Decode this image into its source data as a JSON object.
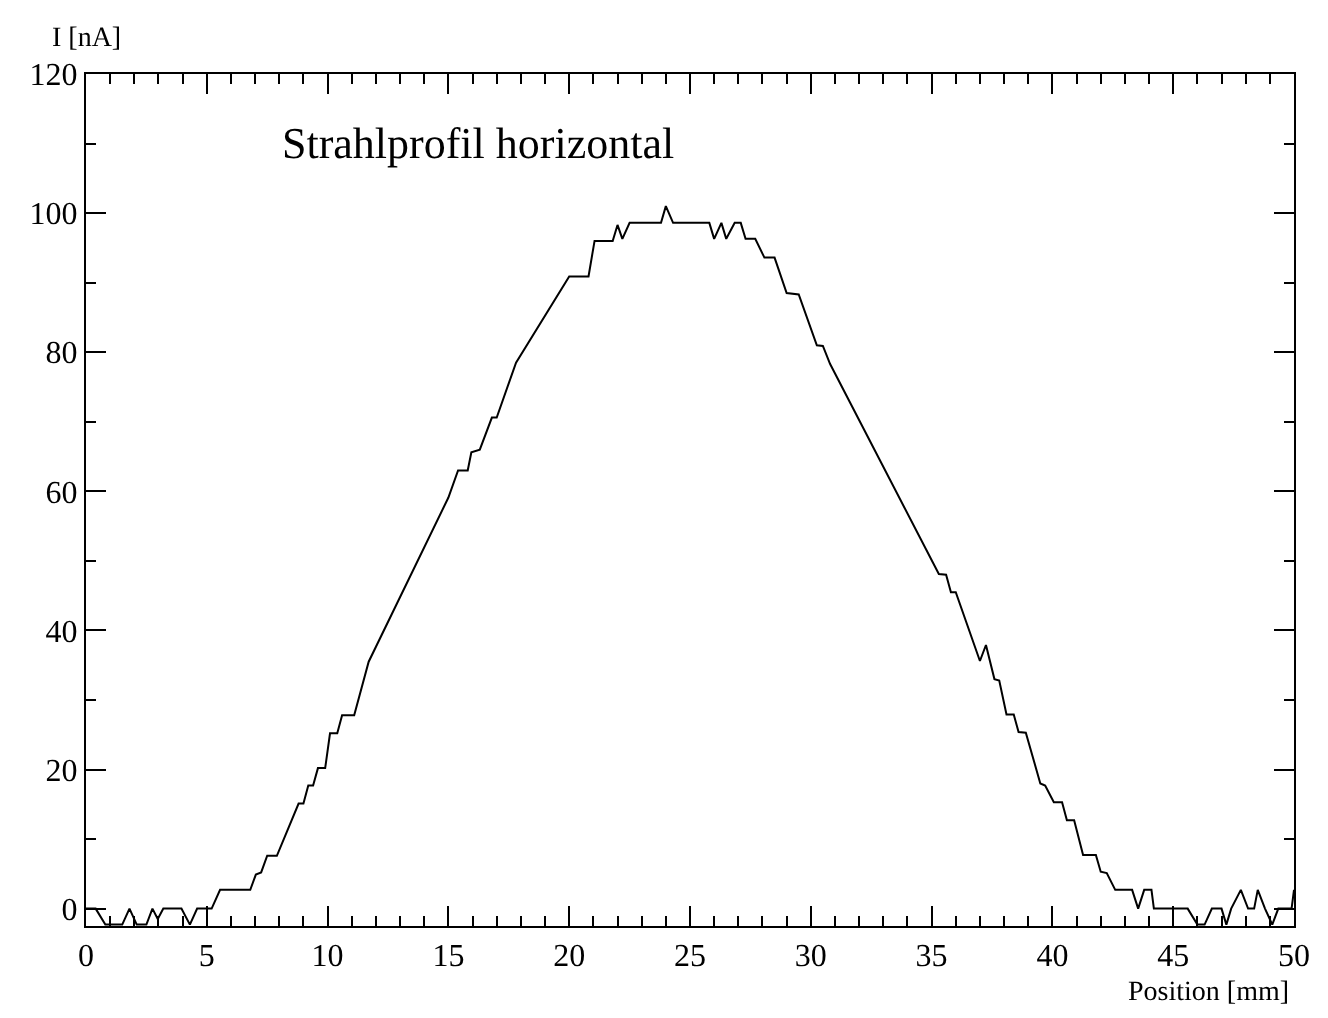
{
  "chart_data": {
    "type": "line",
    "title": "Strahlprofil horizontal",
    "xlabel": "Position [mm]",
    "ylabel": "I [nA]",
    "series": [
      {
        "color": "#000000",
        "x": [
          0,
          0.4,
          0.8,
          1.5,
          1.8,
          2.1,
          2.5,
          2.75,
          2.97,
          3.2,
          3.95,
          4.3,
          4.6,
          5.2,
          5.55,
          6.8,
          7.03,
          7.25,
          7.5,
          7.9,
          8.8,
          9.0,
          9.2,
          9.4,
          9.6,
          9.9,
          10.1,
          10.4,
          10.6,
          10.8,
          11.1,
          11.7,
          15.0,
          15.4,
          15.8,
          15.95,
          16.3,
          16.8,
          17.0,
          17.8,
          20.0,
          20.8,
          21.05,
          21.8,
          22.0,
          22.2,
          22.5,
          23.8,
          24.0,
          24.3,
          25.8,
          26.0,
          26.3,
          26.5,
          26.85,
          27.1,
          27.3,
          27.7,
          28.08,
          28.5,
          29.0,
          29.5,
          30.25,
          30.5,
          30.8,
          35.3,
          35.6,
          35.8,
          36.0,
          37.0,
          37.25,
          37.6,
          37.8,
          38.1,
          38.4,
          38.6,
          38.9,
          39.5,
          39.7,
          40.06,
          40.4,
          40.6,
          40.9,
          41.27,
          41.8,
          42.0,
          42.25,
          42.6,
          43.3,
          43.55,
          43.8,
          44.1,
          44.2,
          44.9,
          45.6,
          46.0,
          46.3,
          46.6,
          47.0,
          47.2,
          47.4,
          47.8,
          48.1,
          48.35,
          48.5,
          48.8,
          49.1,
          49.35,
          49.9,
          50.0
        ],
        "values": [
          0,
          0,
          -2.3,
          -2.3,
          0,
          -2.3,
          -2.3,
          0,
          -1.5,
          0,
          0,
          -2.3,
          0,
          0,
          2.7,
          2.7,
          4.9,
          5.2,
          7.6,
          7.6,
          15.1,
          15.1,
          17.7,
          17.7,
          20.2,
          20.2,
          25.2,
          25.2,
          27.8,
          27.8,
          27.8,
          35.5,
          59.1,
          63,
          63,
          65.6,
          66,
          70.6,
          70.6,
          78.5,
          90.9,
          90.9,
          96,
          96,
          98.3,
          96.3,
          98.6,
          98.6,
          101,
          98.6,
          98.6,
          96.3,
          98.6,
          96.3,
          98.6,
          98.6,
          96.3,
          96.3,
          93.6,
          93.6,
          88.5,
          88.3,
          81,
          80.9,
          78.3,
          48.1,
          48,
          45.5,
          45.5,
          35.6,
          37.9,
          33,
          32.8,
          27.9,
          27.9,
          25.4,
          25.3,
          18,
          17.7,
          15.3,
          15.3,
          12.7,
          12.7,
          7.7,
          7.7,
          5.3,
          5.1,
          2.7,
          2.7,
          0,
          2.7,
          2.7,
          0,
          0,
          0,
          -2.3,
          -2.3,
          0,
          0,
          -2.3,
          0,
          2.7,
          0,
          0,
          2.7,
          0,
          -2.3,
          0,
          0,
          2.7
        ]
      }
    ],
    "xlim": [
      0,
      50
    ],
    "ylim": [
      -2.5,
      120
    ],
    "xticks": [
      0,
      {
        "value": 1,
        "label": null
      },
      {
        "value": 2,
        "label": null
      },
      {
        "value": 3,
        "label": null
      },
      {
        "value": 4,
        "label": null
      },
      5,
      {
        "value": 6,
        "label": null
      },
      {
        "value": 7,
        "label": null
      },
      {
        "value": 8,
        "label": null
      },
      {
        "value": 9,
        "label": null
      },
      10,
      {
        "value": 11,
        "label": null
      },
      {
        "value": 12,
        "label": null
      },
      {
        "value": 13,
        "label": null
      },
      {
        "value": 14,
        "label": null
      },
      15,
      {
        "value": 16,
        "label": null
      },
      {
        "value": 17,
        "label": null
      },
      {
        "value": 18,
        "label": null
      },
      {
        "value": 19,
        "label": null
      },
      20,
      {
        "value": 21,
        "label": null
      },
      {
        "value": 22,
        "label": null
      },
      {
        "value": 23,
        "label": null
      },
      {
        "value": 24,
        "label": null
      },
      25,
      {
        "value": 26,
        "label": null
      },
      {
        "value": 27,
        "label": null
      },
      {
        "value": 28,
        "label": null
      },
      {
        "value": 29,
        "label": null
      },
      30,
      {
        "value": 31,
        "label": null
      },
      {
        "value": 32,
        "label": null
      },
      {
        "value": 33,
        "label": null
      },
      {
        "value": 34,
        "label": null
      },
      35,
      {
        "value": 36,
        "label": null
      },
      {
        "value": 37,
        "label": null
      },
      {
        "value": 38,
        "label": null
      },
      {
        "value": 39,
        "label": null
      },
      40,
      {
        "value": 41,
        "label": null
      },
      {
        "value": 42,
        "label": null
      },
      {
        "value": 43,
        "label": null
      },
      {
        "value": 44,
        "label": null
      },
      45,
      {
        "value": 46,
        "label": null
      },
      {
        "value": 47,
        "label": null
      },
      {
        "value": 48,
        "label": null
      },
      {
        "value": 49,
        "label": null
      },
      50
    ],
    "yticks": [
      0,
      {
        "value": 10,
        "label": null
      },
      20,
      {
        "value": 30,
        "label": null
      },
      40,
      {
        "value": 50,
        "label": null
      },
      60,
      {
        "value": 70,
        "label": null
      },
      80,
      {
        "value": 90,
        "label": null
      },
      100,
      {
        "value": 110,
        "label": null
      },
      120
    ],
    "marker": "none",
    "line_style": "solid"
  }
}
